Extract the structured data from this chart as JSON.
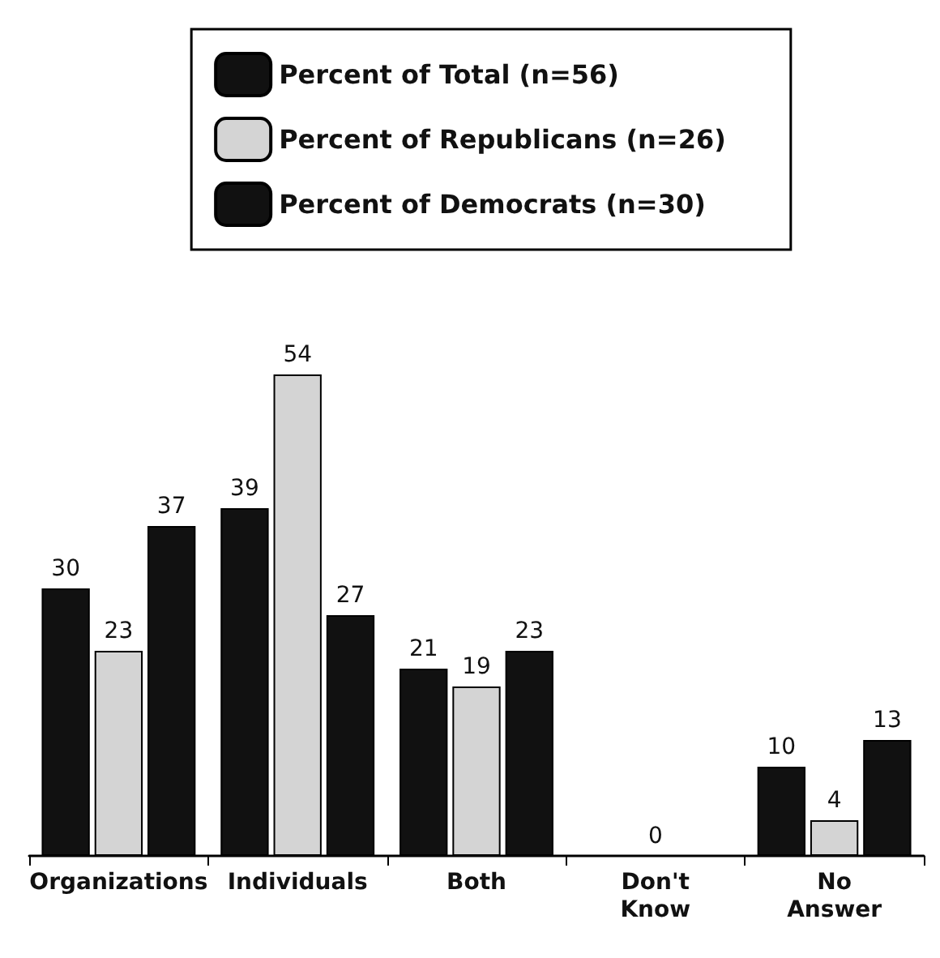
{
  "chart_data": {
    "type": "bar",
    "categories": [
      "Organizations",
      "Individuals",
      "Both",
      "Don't\nKnow",
      "No\nAnswer"
    ],
    "series": [
      {
        "name": "Percent of Total (n=56)",
        "color": "#111111",
        "values": [
          30,
          39,
          21,
          0,
          10
        ],
        "value_labels": [
          "30",
          "39",
          "21",
          null,
          "10"
        ]
      },
      {
        "name": "Percent of Republicans (n=26)",
        "color": "#d4d4d4",
        "values": [
          23,
          54,
          19,
          0,
          4
        ],
        "value_labels": [
          "23",
          "54",
          "19",
          "0",
          "4"
        ]
      },
      {
        "name": "Percent of Democrats (n=30)",
        "color": "#111111",
        "values": [
          37,
          27,
          23,
          0,
          13
        ],
        "value_labels": [
          "37",
          "27",
          "23",
          null,
          "13"
        ]
      }
    ],
    "legend": "top"
  }
}
